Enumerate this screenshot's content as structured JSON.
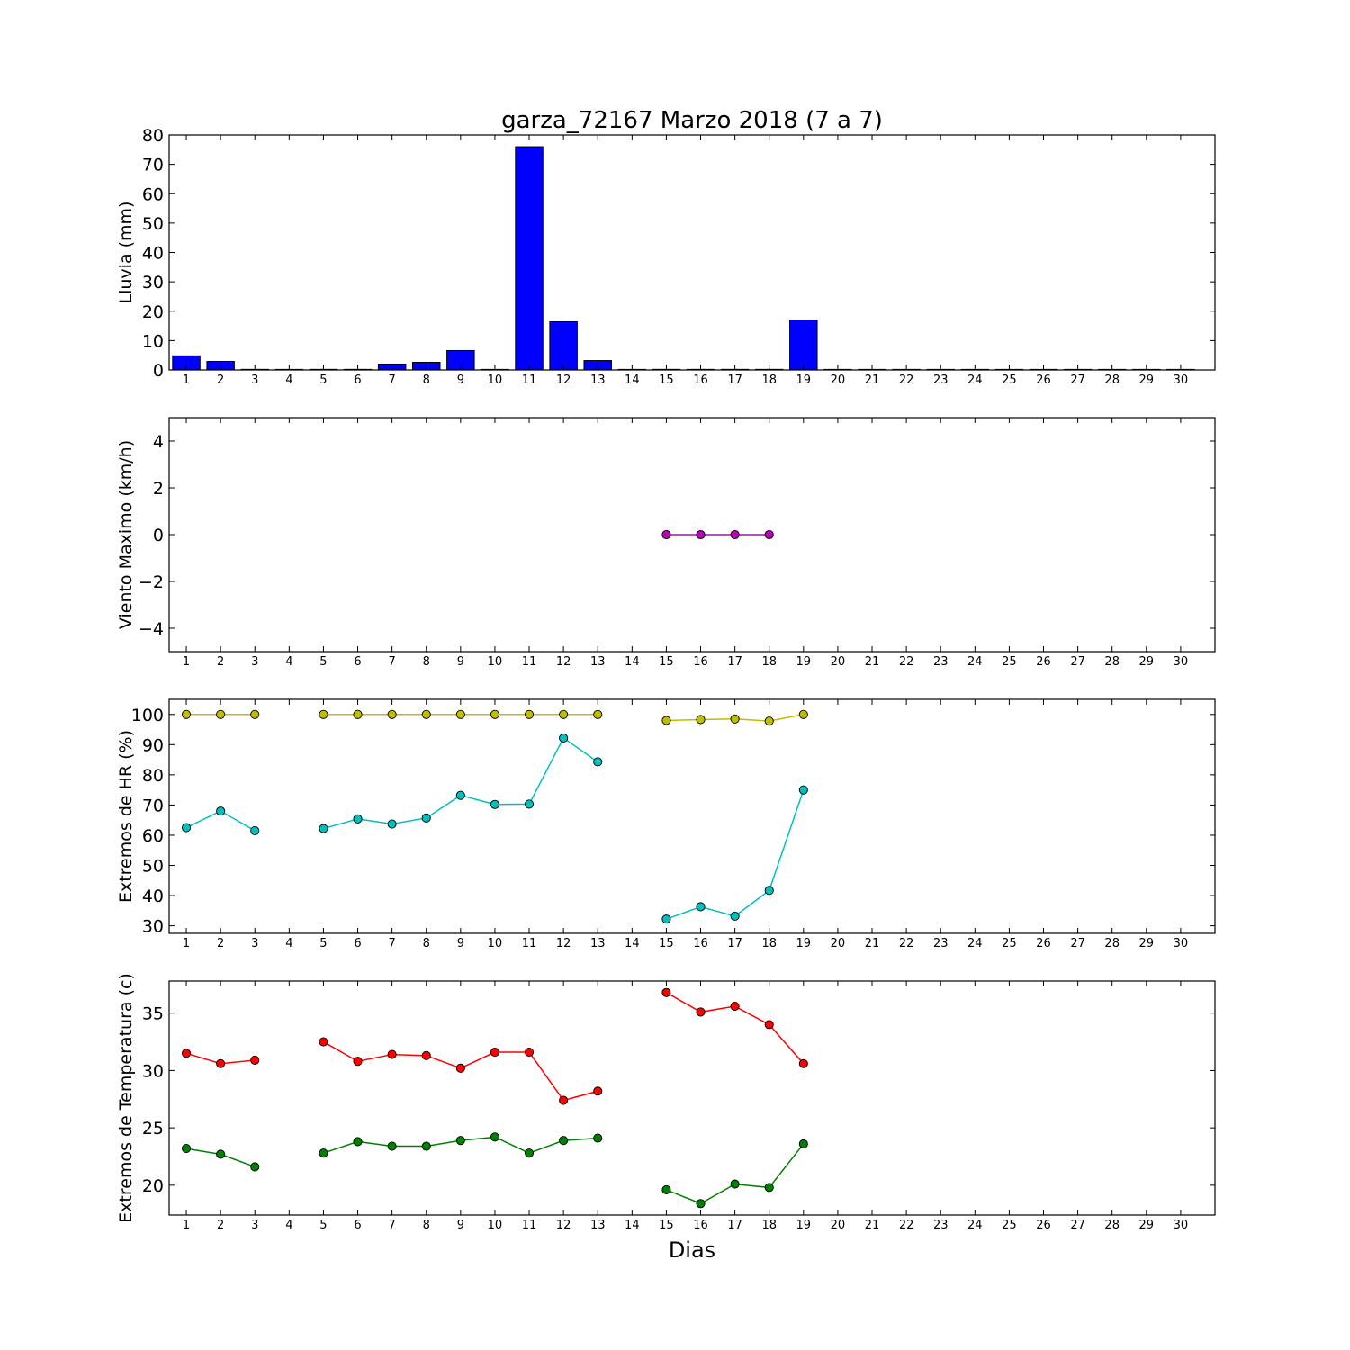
{
  "title": "garza_72167 Marzo 2018  (7 a 7)",
  "xlabel": "Dias",
  "chart_data": [
    {
      "type": "bar",
      "ylabel": "Lluvia (mm)",
      "ylim": [
        0,
        80
      ],
      "yticks": [
        0,
        10,
        20,
        30,
        40,
        50,
        60,
        70,
        80
      ],
      "ytick_labels": [
        "0",
        "10",
        "20",
        "30",
        "40",
        "50",
        "60",
        "70",
        "80"
      ],
      "categories": [
        "1",
        "2",
        "3",
        "4",
        "5",
        "6",
        "7",
        "8",
        "9",
        "10",
        "11",
        "12",
        "13",
        "14",
        "15",
        "16",
        "17",
        "18",
        "19",
        "20",
        "21",
        "22",
        "23",
        "24",
        "25",
        "26",
        "27",
        "28",
        "29",
        "30"
      ],
      "values": [
        4.8,
        2.9,
        0.2,
        0,
        0.2,
        0.2,
        2.0,
        2.6,
        6.6,
        0,
        76.0,
        16.4,
        3.2,
        0,
        0.2,
        0.2,
        0.2,
        0.2,
        17.0,
        0,
        0,
        0,
        0,
        0,
        0,
        0,
        0,
        0,
        0,
        0
      ],
      "color": "#0000ff"
    },
    {
      "type": "line",
      "ylabel": "Viento Maximo (km/h)",
      "ylim": [
        -5,
        5
      ],
      "yticks": [
        -4,
        -2,
        0,
        2,
        4
      ],
      "ytick_labels": [
        "−4",
        "−2",
        "0",
        "2",
        "4"
      ],
      "categories": [
        "1",
        "2",
        "3",
        "4",
        "5",
        "6",
        "7",
        "8",
        "9",
        "10",
        "11",
        "12",
        "13",
        "14",
        "15",
        "16",
        "17",
        "18",
        "19",
        "20",
        "21",
        "22",
        "23",
        "24",
        "25",
        "26",
        "27",
        "28",
        "29",
        "30"
      ],
      "series": [
        {
          "color": "#bf00bf",
          "values": [
            null,
            null,
            null,
            null,
            null,
            null,
            null,
            null,
            null,
            null,
            null,
            null,
            null,
            null,
            0,
            0,
            0,
            0,
            null,
            null,
            null,
            null,
            null,
            null,
            null,
            null,
            null,
            null,
            null,
            null
          ]
        }
      ]
    },
    {
      "type": "line",
      "ylabel": "Extremos de HR (%)",
      "ylim": [
        27.5,
        105
      ],
      "yticks": [
        30,
        40,
        50,
        60,
        70,
        80,
        90,
        100
      ],
      "ytick_labels": [
        "30",
        "40",
        "50",
        "60",
        "70",
        "80",
        "90",
        "100"
      ],
      "categories": [
        "1",
        "2",
        "3",
        "4",
        "5",
        "6",
        "7",
        "8",
        "9",
        "10",
        "11",
        "12",
        "13",
        "14",
        "15",
        "16",
        "17",
        "18",
        "19",
        "20",
        "21",
        "22",
        "23",
        "24",
        "25",
        "26",
        "27",
        "28",
        "29",
        "30"
      ],
      "series": [
        {
          "color": "#bfbf00",
          "values": [
            100,
            100,
            100,
            null,
            100,
            100,
            100,
            100,
            100,
            100,
            100,
            100,
            100,
            null,
            98,
            98.3,
            98.5,
            97.8,
            100,
            null,
            null,
            null,
            null,
            null,
            null,
            null,
            null,
            null,
            null,
            null
          ]
        },
        {
          "color": "#00bfbf",
          "values": [
            62.5,
            68,
            61.5,
            null,
            62.2,
            65.4,
            63.7,
            65.7,
            73.2,
            70.2,
            70.3,
            92.2,
            84.3,
            null,
            32.2,
            36.3,
            33.2,
            41.7,
            75,
            null,
            null,
            null,
            null,
            null,
            null,
            null,
            null,
            null,
            null,
            null
          ]
        }
      ]
    },
    {
      "type": "line",
      "ylabel": "Extremos de Temperatura (c)",
      "ylim": [
        17.4,
        37.8
      ],
      "yticks": [
        20,
        25,
        30,
        35
      ],
      "ytick_labels": [
        "20",
        "25",
        "30",
        "35"
      ],
      "categories": [
        "1",
        "2",
        "3",
        "4",
        "5",
        "6",
        "7",
        "8",
        "9",
        "10",
        "11",
        "12",
        "13",
        "14",
        "15",
        "16",
        "17",
        "18",
        "19",
        "20",
        "21",
        "22",
        "23",
        "24",
        "25",
        "26",
        "27",
        "28",
        "29",
        "30"
      ],
      "series": [
        {
          "color": "#ff0000",
          "values": [
            31.5,
            30.6,
            30.9,
            null,
            32.5,
            30.8,
            31.4,
            31.3,
            30.2,
            31.6,
            31.6,
            27.4,
            28.2,
            null,
            36.8,
            35.1,
            35.6,
            34.0,
            30.6,
            null,
            null,
            null,
            null,
            null,
            null,
            null,
            null,
            null,
            null,
            null
          ]
        },
        {
          "color": "#008000",
          "values": [
            23.2,
            22.7,
            21.6,
            null,
            22.8,
            23.8,
            23.4,
            23.4,
            23.9,
            24.2,
            22.8,
            23.9,
            24.1,
            null,
            19.6,
            18.4,
            20.1,
            19.8,
            23.6,
            null,
            null,
            null,
            null,
            null,
            null,
            null,
            null,
            null,
            null,
            null
          ]
        }
      ]
    }
  ]
}
